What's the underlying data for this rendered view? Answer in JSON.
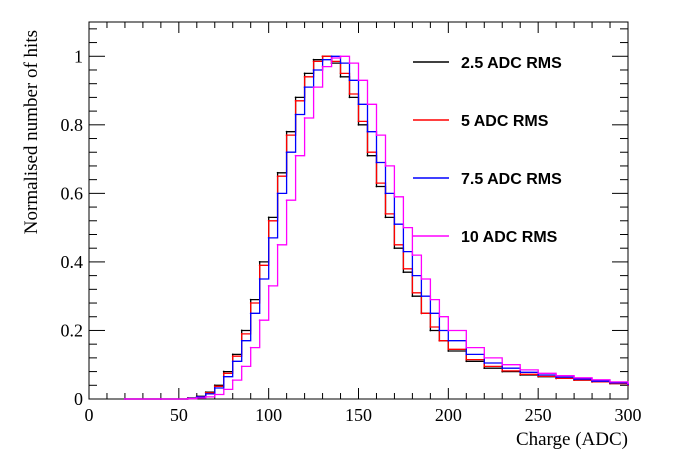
{
  "chart_data": {
    "type": "line",
    "title": "",
    "xlabel": "Charge (ADC)",
    "ylabel": "Normalised number of hits",
    "xlim": [
      0,
      300
    ],
    "ylim": [
      0,
      1.1
    ],
    "xticks": [
      0,
      50,
      100,
      150,
      200,
      250,
      300
    ],
    "yticks": [
      0,
      0.2,
      0.4,
      0.6,
      0.8,
      1
    ],
    "xtick_labels": [
      "0",
      "50",
      "100",
      "150",
      "200",
      "250",
      "300"
    ],
    "ytick_labels": [
      "0",
      "0.2",
      "0.4",
      "0.6",
      "0.8",
      "1"
    ],
    "grid": false,
    "legend_position": "top-right",
    "series": [
      {
        "name": "2.5 ADC RMS",
        "color": "#000000",
        "x": [
          20,
          40,
          55,
          60,
          65,
          70,
          75,
          80,
          85,
          90,
          95,
          100,
          105,
          110,
          115,
          120,
          125,
          130,
          135,
          140,
          145,
          150,
          155,
          160,
          165,
          170,
          175,
          180,
          185,
          190,
          195,
          200,
          210,
          220,
          230,
          240,
          250,
          260,
          270,
          280,
          290,
          300
        ],
        "y": [
          0,
          0,
          0.003,
          0.008,
          0.02,
          0.04,
          0.08,
          0.13,
          0.2,
          0.29,
          0.4,
          0.53,
          0.66,
          0.78,
          0.88,
          0.95,
          0.99,
          1.0,
          0.98,
          0.94,
          0.88,
          0.8,
          0.71,
          0.62,
          0.53,
          0.44,
          0.37,
          0.3,
          0.25,
          0.2,
          0.17,
          0.14,
          0.11,
          0.09,
          0.08,
          0.07,
          0.065,
          0.06,
          0.055,
          0.05,
          0.045,
          0.04
        ]
      },
      {
        "name": "5 ADC RMS",
        "color": "#ff0000",
        "x": [
          20,
          40,
          55,
          60,
          65,
          70,
          75,
          80,
          85,
          90,
          95,
          100,
          105,
          110,
          115,
          120,
          125,
          130,
          135,
          140,
          145,
          150,
          155,
          160,
          165,
          170,
          175,
          180,
          185,
          190,
          195,
          200,
          210,
          220,
          230,
          240,
          250,
          260,
          270,
          280,
          290,
          300
        ],
        "y": [
          0,
          0,
          0.003,
          0.007,
          0.018,
          0.037,
          0.075,
          0.125,
          0.19,
          0.28,
          0.39,
          0.52,
          0.65,
          0.77,
          0.87,
          0.94,
          0.985,
          1.0,
          0.985,
          0.95,
          0.89,
          0.81,
          0.72,
          0.63,
          0.54,
          0.45,
          0.38,
          0.31,
          0.25,
          0.21,
          0.17,
          0.145,
          0.115,
          0.095,
          0.082,
          0.072,
          0.066,
          0.06,
          0.055,
          0.05,
          0.045,
          0.04
        ]
      },
      {
        "name": "7.5 ADC RMS",
        "color": "#0000ff",
        "x": [
          20,
          40,
          55,
          60,
          65,
          70,
          75,
          80,
          85,
          90,
          95,
          100,
          105,
          110,
          115,
          120,
          125,
          130,
          135,
          140,
          145,
          150,
          155,
          160,
          165,
          170,
          175,
          180,
          185,
          190,
          195,
          200,
          210,
          220,
          230,
          240,
          250,
          260,
          270,
          280,
          290,
          300
        ],
        "y": [
          0,
          0,
          0.002,
          0.006,
          0.015,
          0.032,
          0.065,
          0.11,
          0.17,
          0.25,
          0.35,
          0.47,
          0.6,
          0.72,
          0.83,
          0.91,
          0.96,
          0.99,
          1.0,
          0.98,
          0.93,
          0.86,
          0.78,
          0.69,
          0.6,
          0.51,
          0.43,
          0.36,
          0.3,
          0.25,
          0.2,
          0.17,
          0.13,
          0.105,
          0.09,
          0.078,
          0.07,
          0.064,
          0.058,
          0.052,
          0.047,
          0.042
        ]
      },
      {
        "name": "10 ADC RMS",
        "color": "#ff00ff",
        "x": [
          20,
          40,
          55,
          60,
          65,
          70,
          75,
          80,
          85,
          90,
          95,
          100,
          105,
          110,
          115,
          120,
          125,
          130,
          135,
          140,
          145,
          150,
          155,
          160,
          165,
          170,
          175,
          180,
          185,
          190,
          195,
          200,
          210,
          220,
          230,
          240,
          250,
          260,
          270,
          280,
          290,
          300
        ],
        "y": [
          0,
          0,
          0.001,
          0.003,
          0.006,
          0.013,
          0.028,
          0.055,
          0.095,
          0.15,
          0.23,
          0.33,
          0.45,
          0.58,
          0.71,
          0.82,
          0.91,
          0.97,
          0.995,
          1.0,
          0.98,
          0.93,
          0.86,
          0.77,
          0.68,
          0.59,
          0.5,
          0.42,
          0.35,
          0.29,
          0.24,
          0.2,
          0.15,
          0.12,
          0.1,
          0.085,
          0.075,
          0.068,
          0.062,
          0.056,
          0.05,
          0.045
        ]
      }
    ]
  }
}
